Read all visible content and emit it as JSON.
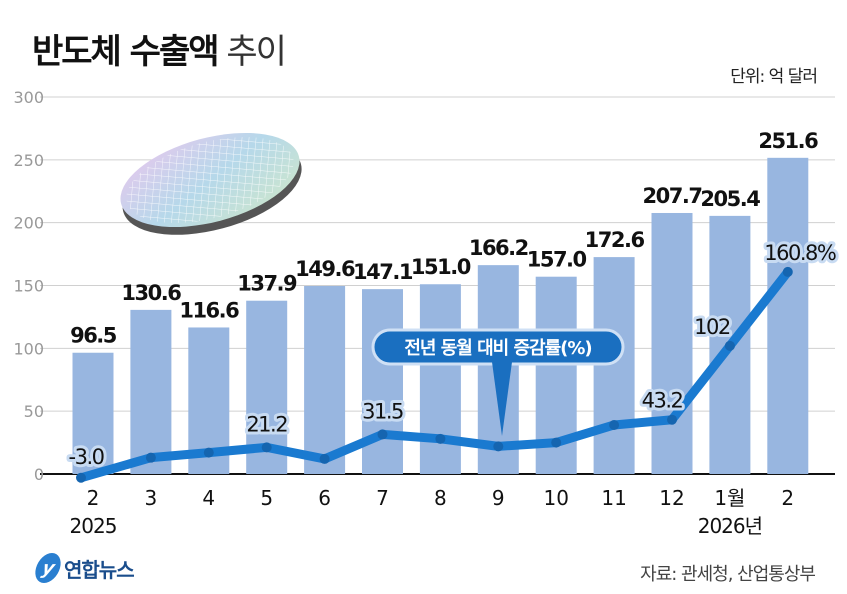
{
  "title_bold": "반도체 수출액",
  "title_light": "추이",
  "unit": "단위: 억 달러",
  "source": "자료: 관세청, 산업통상부",
  "logo_text": "연합뉴스",
  "colors": {
    "bar": "#98b6e0",
    "line": "#1a7ad0",
    "callout": "#1a6fc0",
    "grid": "#d0d0d0"
  },
  "chart_data": {
    "type": "bar+line",
    "categories": [
      "2",
      "3",
      "4",
      "5",
      "6",
      "7",
      "8",
      "9",
      "10",
      "11",
      "12",
      "1월",
      "2"
    ],
    "year_labels": [
      {
        "index": 0,
        "text": "2025"
      },
      {
        "index": 11,
        "text": "2026년"
      }
    ],
    "ylim": [
      0,
      300
    ],
    "yticks": [
      0,
      50,
      100,
      150,
      200,
      250,
      300
    ],
    "grid": true,
    "series": [
      {
        "type": "bar",
        "values": [
          96.5,
          130.6,
          116.6,
          137.9,
          149.6,
          147.1,
          151.0,
          166.2,
          157.0,
          172.6,
          207.7,
          205.4,
          251.6
        ],
        "labels": [
          "96.5",
          "130.6",
          "116.6",
          "137.9",
          "149.6",
          "147.1",
          "151.0",
          "166.2",
          "157.0",
          "172.6",
          "207.7",
          "205.4",
          "251.6"
        ]
      },
      {
        "type": "line",
        "name": "전년 동월 대비 증감률(%)",
        "values": [
          -3.0,
          13,
          17,
          21.2,
          12,
          31.5,
          28,
          22,
          25,
          39,
          43.2,
          102,
          160.8
        ],
        "labels": [
          "-3.0",
          "",
          "",
          "21.2",
          "",
          "31.5",
          "",
          "",
          "",
          "",
          "43.2",
          "102",
          "160.8%"
        ]
      }
    ]
  }
}
